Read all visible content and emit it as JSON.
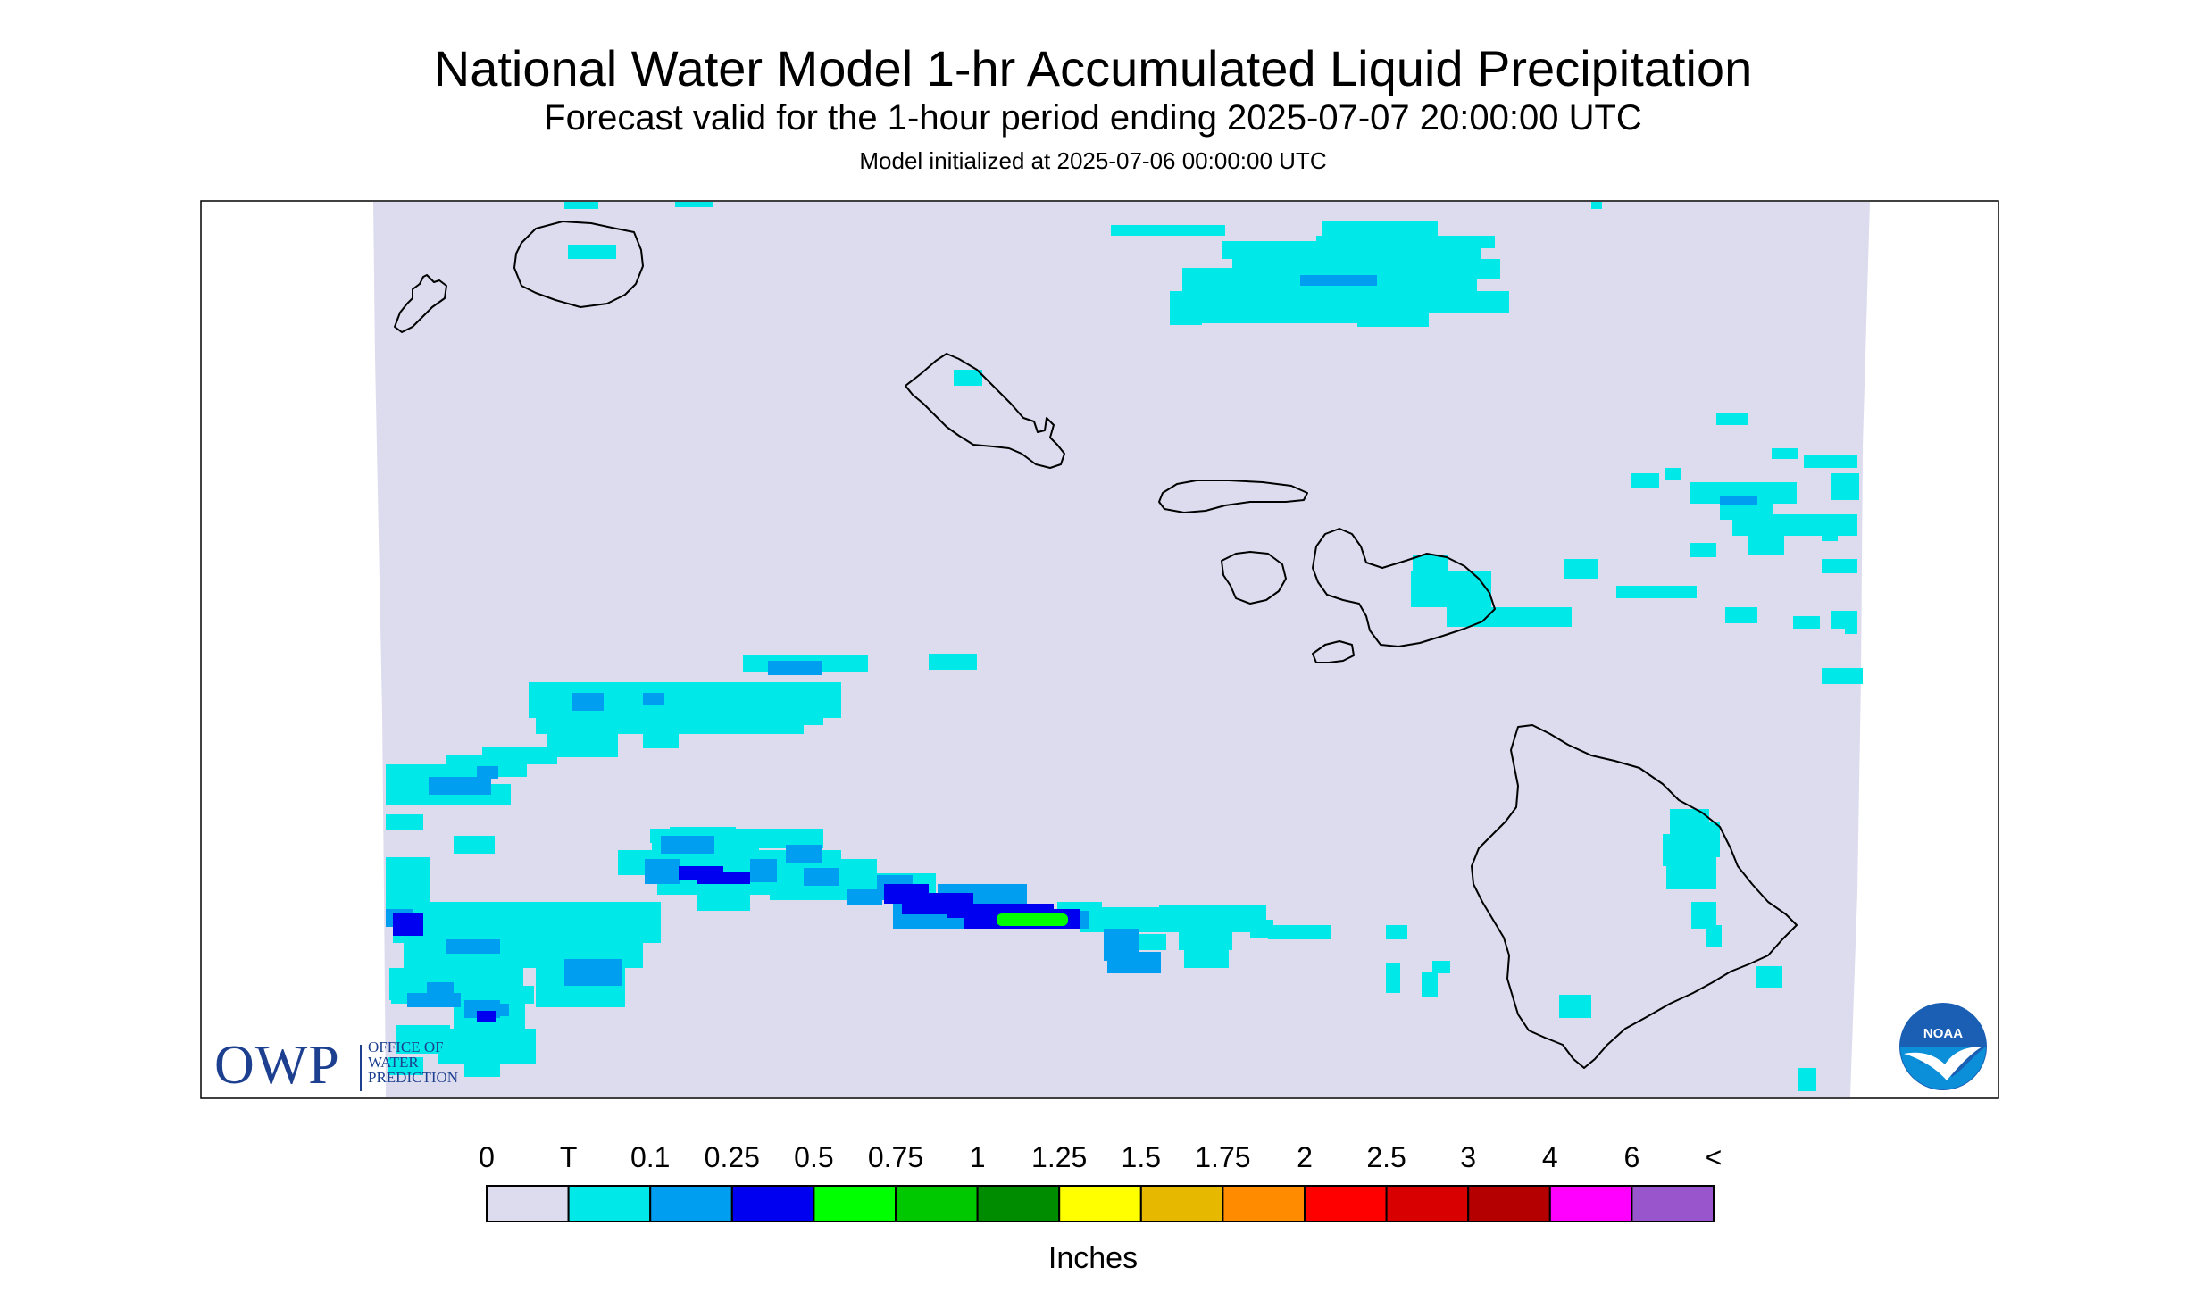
{
  "titles": {
    "main": "National Water Model 1-hr Accumulated Liquid Precipitation",
    "forecast": "Forecast valid for the 1-hour period ending 2025-07-07 20:00:00 UTC",
    "init": "Model initialized at 2025-07-06 00:00:00 UTC"
  },
  "legend": {
    "units": "Inches",
    "labels": [
      "0",
      "T",
      "0.1",
      "0.25",
      "0.5",
      "0.75",
      "1",
      "1.25",
      "1.5",
      "1.75",
      "2",
      "2.5",
      "3",
      "4",
      "6",
      "<"
    ],
    "colors": [
      "#dcdcee",
      "#00e8e8",
      "#009ef0",
      "#0000f0",
      "#00ff00",
      "#00c800",
      "#008c00",
      "#ffff00",
      "#e6b800",
      "#ff8c00",
      "#ff0000",
      "#d80000",
      "#b40000",
      "#ff00ff",
      "#9955cc"
    ]
  },
  "map": {
    "background_color": "#dcdcee",
    "coastline_color": "#000000",
    "islands": [
      "Kauai",
      "Niihau",
      "Oahu",
      "Molokai",
      "Lanai",
      "Maui",
      "Kahoolawe",
      "Hawaii"
    ]
  },
  "logos": {
    "owp": {
      "mark": "OWP",
      "lines": [
        "OFFICE OF",
        "WATER",
        "PREDICTION"
      ],
      "color": "#1d3f8f"
    },
    "noaa": {
      "mark": "NOAA"
    }
  }
}
